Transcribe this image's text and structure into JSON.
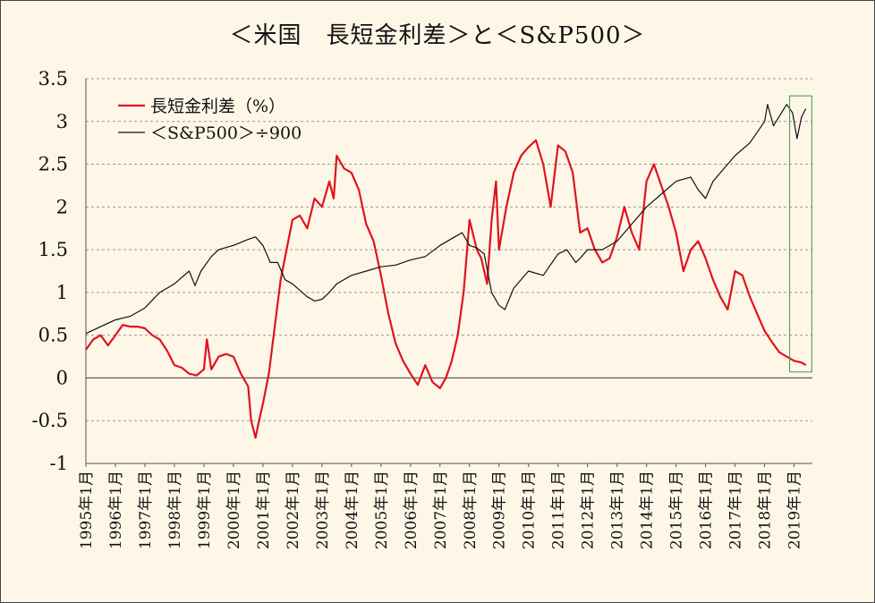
{
  "title": "＜米国　長短金利差＞と＜S&P500＞",
  "chart_data": {
    "type": "line",
    "title": "＜米国　長短金利差＞と＜S&P500＞",
    "xlabel": "",
    "ylabel": "",
    "ylim": [
      -1,
      3.5
    ],
    "yticks": [
      "3.5",
      "3",
      "2.5",
      "2",
      "1.5",
      "1",
      "0.5",
      "0",
      "-0.5",
      "-1"
    ],
    "ytick_values": [
      3.5,
      3,
      2.5,
      2,
      1.5,
      1,
      0.5,
      0,
      -0.5,
      -1
    ],
    "xlim": [
      1995.0,
      2019.5
    ],
    "xticks": [
      "1995年1月",
      "1996年1月",
      "1997年1月",
      "1998年1月",
      "1999年1月",
      "2000年1月",
      "2001年1月",
      "2002年1月",
      "2003年1月",
      "2004年1月",
      "2005年1月",
      "2006年1月",
      "2007年1月",
      "2008年1月",
      "2009年1月",
      "2010年1月",
      "2011年1月",
      "2012年1月",
      "2013年1月",
      "2014年1月",
      "2015年1月",
      "2016年1月",
      "2017年1月",
      "2018年1月",
      "2019年1月"
    ],
    "grid": "horizontal dashed",
    "legend_position": "top-left",
    "highlight_box": {
      "x_from": 2018.85,
      "x_to": 2019.6,
      "y_from": 0.07,
      "y_to": 3.3,
      "color": "#3a9a4a"
    },
    "series": [
      {
        "name": "長短金利差（%）",
        "color": "#e0141e",
        "x": [
          1995.0,
          1995.25,
          1995.5,
          1995.75,
          1996.0,
          1996.25,
          1996.5,
          1996.75,
          1997.0,
          1997.25,
          1997.5,
          1997.75,
          1998.0,
          1998.25,
          1998.5,
          1998.75,
          1999.0,
          1999.1,
          1999.25,
          1999.5,
          1999.75,
          2000.0,
          2000.25,
          2000.5,
          2000.6,
          2000.75,
          2000.9,
          2001.0,
          2001.2,
          2001.4,
          2001.6,
          2001.8,
          2002.0,
          2002.25,
          2002.5,
          2002.75,
          2003.0,
          2003.25,
          2003.4,
          2003.5,
          2003.75,
          2004.0,
          2004.25,
          2004.5,
          2004.75,
          2005.0,
          2005.25,
          2005.5,
          2005.75,
          2006.0,
          2006.25,
          2006.5,
          2006.75,
          2007.0,
          2007.2,
          2007.4,
          2007.6,
          2007.8,
          2008.0,
          2008.25,
          2008.4,
          2008.6,
          2008.75,
          2008.9,
          2009.0,
          2009.25,
          2009.5,
          2009.75,
          2010.0,
          2010.25,
          2010.5,
          2010.75,
          2011.0,
          2011.25,
          2011.5,
          2011.75,
          2012.0,
          2012.25,
          2012.5,
          2012.75,
          2013.0,
          2013.25,
          2013.5,
          2013.75,
          2014.0,
          2014.25,
          2014.5,
          2014.75,
          2015.0,
          2015.25,
          2015.5,
          2015.75,
          2016.0,
          2016.25,
          2016.5,
          2016.75,
          2017.0,
          2017.25,
          2017.5,
          2017.75,
          2018.0,
          2018.25,
          2018.5,
          2018.75,
          2019.0,
          2019.25,
          2019.4
        ],
        "y": [
          0.33,
          0.45,
          0.5,
          0.38,
          0.5,
          0.62,
          0.6,
          0.6,
          0.58,
          0.5,
          0.45,
          0.32,
          0.15,
          0.12,
          0.05,
          0.03,
          0.1,
          0.45,
          0.1,
          0.25,
          0.28,
          0.25,
          0.05,
          -0.1,
          -0.5,
          -0.7,
          -0.45,
          -0.3,
          0.05,
          0.6,
          1.15,
          1.5,
          1.85,
          1.9,
          1.75,
          2.1,
          2.0,
          2.3,
          2.1,
          2.6,
          2.45,
          2.4,
          2.2,
          1.8,
          1.6,
          1.2,
          0.75,
          0.4,
          0.2,
          0.05,
          -0.08,
          0.15,
          -0.05,
          -0.12,
          0.0,
          0.2,
          0.5,
          1.0,
          1.85,
          1.5,
          1.4,
          1.1,
          1.85,
          2.3,
          1.5,
          2.0,
          2.4,
          2.6,
          2.7,
          2.78,
          2.5,
          2.0,
          2.72,
          2.65,
          2.4,
          1.7,
          1.75,
          1.5,
          1.35,
          1.4,
          1.65,
          2.0,
          1.7,
          1.5,
          2.3,
          2.5,
          2.25,
          2.0,
          1.7,
          1.25,
          1.5,
          1.6,
          1.4,
          1.15,
          0.95,
          0.8,
          1.25,
          1.2,
          0.95,
          0.75,
          0.55,
          0.42,
          0.3,
          0.25,
          0.2,
          0.18,
          0.15
        ]
      },
      {
        "name": "＜S&P500＞÷900",
        "color": "#111111",
        "x": [
          1995.0,
          1995.5,
          1996.0,
          1996.5,
          1997.0,
          1997.5,
          1997.75,
          1998.0,
          1998.5,
          1998.7,
          1998.9,
          1999.25,
          1999.5,
          2000.0,
          2000.5,
          2000.75,
          2001.0,
          2001.25,
          2001.5,
          2001.75,
          2002.0,
          2002.5,
          2002.75,
          2003.0,
          2003.25,
          2003.5,
          2004.0,
          2004.5,
          2005.0,
          2005.5,
          2006.0,
          2006.5,
          2007.0,
          2007.5,
          2007.75,
          2008.0,
          2008.25,
          2008.5,
          2008.75,
          2009.0,
          2009.2,
          2009.5,
          2010.0,
          2010.5,
          2011.0,
          2011.3,
          2011.6,
          2011.75,
          2012.0,
          2012.5,
          2013.0,
          2013.5,
          2014.0,
          2014.5,
          2015.0,
          2015.5,
          2015.75,
          2016.0,
          2016.25,
          2016.5,
          2017.0,
          2017.5,
          2018.0,
          2018.1,
          2018.3,
          2018.75,
          2018.95,
          2019.1,
          2019.25,
          2019.4
        ],
        "y": [
          0.52,
          0.6,
          0.68,
          0.72,
          0.82,
          1.0,
          1.05,
          1.1,
          1.25,
          1.08,
          1.25,
          1.42,
          1.5,
          1.55,
          1.62,
          1.65,
          1.55,
          1.35,
          1.35,
          1.15,
          1.1,
          0.95,
          0.9,
          0.92,
          1.0,
          1.1,
          1.2,
          1.25,
          1.3,
          1.32,
          1.38,
          1.42,
          1.55,
          1.65,
          1.7,
          1.55,
          1.52,
          1.45,
          1.0,
          0.85,
          0.8,
          1.05,
          1.25,
          1.2,
          1.45,
          1.5,
          1.35,
          1.4,
          1.5,
          1.5,
          1.6,
          1.8,
          2.0,
          2.15,
          2.3,
          2.35,
          2.2,
          2.1,
          2.3,
          2.4,
          2.6,
          2.75,
          3.0,
          3.2,
          2.95,
          3.2,
          3.1,
          2.8,
          3.05,
          3.15
        ]
      }
    ]
  }
}
